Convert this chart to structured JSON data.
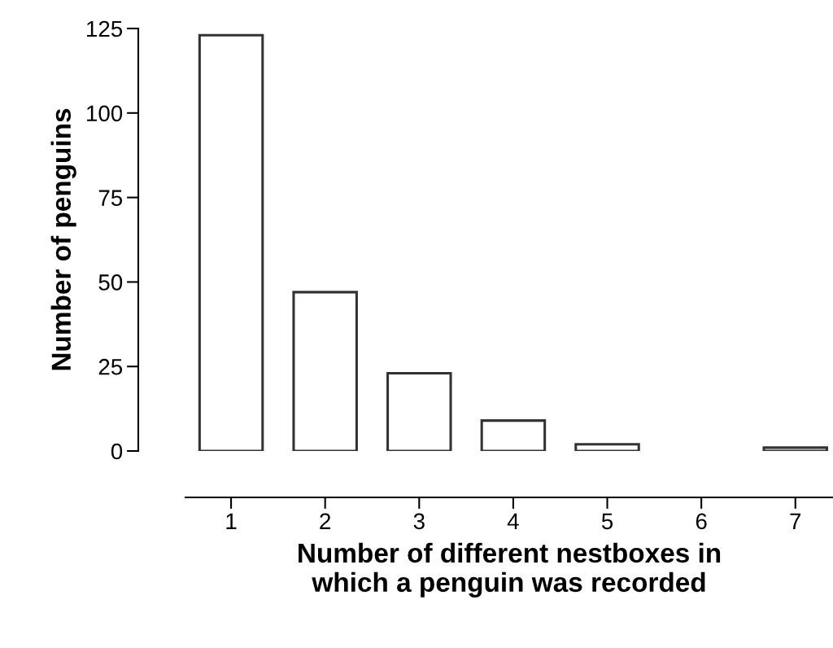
{
  "chart_data": {
    "type": "bar",
    "xlabel": "Number of different nestboxes in\nwhich a penguin was recorded",
    "ylabel": "Number of penguins",
    "categories": [
      "1",
      "2",
      "3",
      "4",
      "5",
      "6",
      "7"
    ],
    "values": [
      123,
      47,
      23,
      9,
      2,
      0,
      1
    ],
    "color": "#ffffff",
    "ylim": [
      0,
      125
    ],
    "yticks": [
      0,
      25,
      50,
      75,
      100,
      125
    ],
    "grid": false,
    "legend": false
  }
}
